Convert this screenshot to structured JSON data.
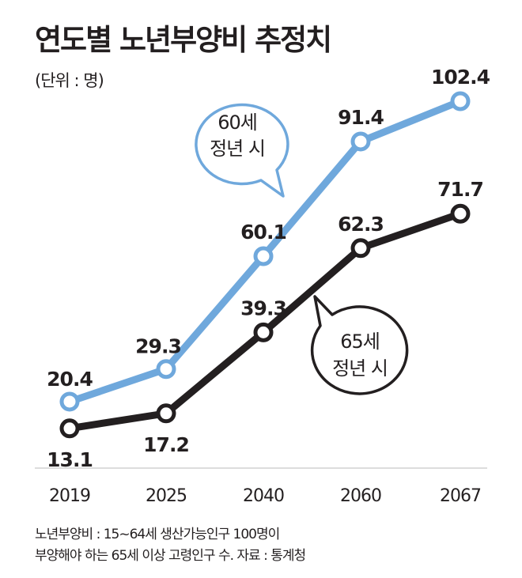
{
  "chart_data": {
    "type": "line",
    "title": "연도별 노년부양비 추정치",
    "subtitle": "(단위 : 명)",
    "categories": [
      "2019",
      "2025",
      "2040",
      "2060",
      "2067"
    ],
    "series": [
      {
        "name": "60세 정년 시",
        "color": "#6fa8dc",
        "values": [
          20.4,
          29.3,
          60.1,
          91.4,
          102.4
        ],
        "labels": [
          "20.4",
          "29.3",
          "60.1",
          "91.4",
          "102.4"
        ]
      },
      {
        "name": "65세 정년 시",
        "color": "#231f20",
        "values": [
          13.1,
          17.2,
          39.3,
          62.3,
          71.7
        ],
        "labels": [
          "13.1",
          "17.2",
          "39.3",
          "62.3",
          "71.7"
        ]
      }
    ],
    "annotations": {
      "blue_bubble": [
        "60세",
        "정년 시"
      ],
      "black_bubble": [
        "65세",
        "정년 시"
      ]
    },
    "grid": false,
    "legend": "none"
  },
  "footnote": {
    "line1": "노년부양비 : 15~64세 생산가능인구 100명이",
    "line2": "부양해야 하는 65세 이상 고령인구 수. 자료 : 통계청"
  }
}
